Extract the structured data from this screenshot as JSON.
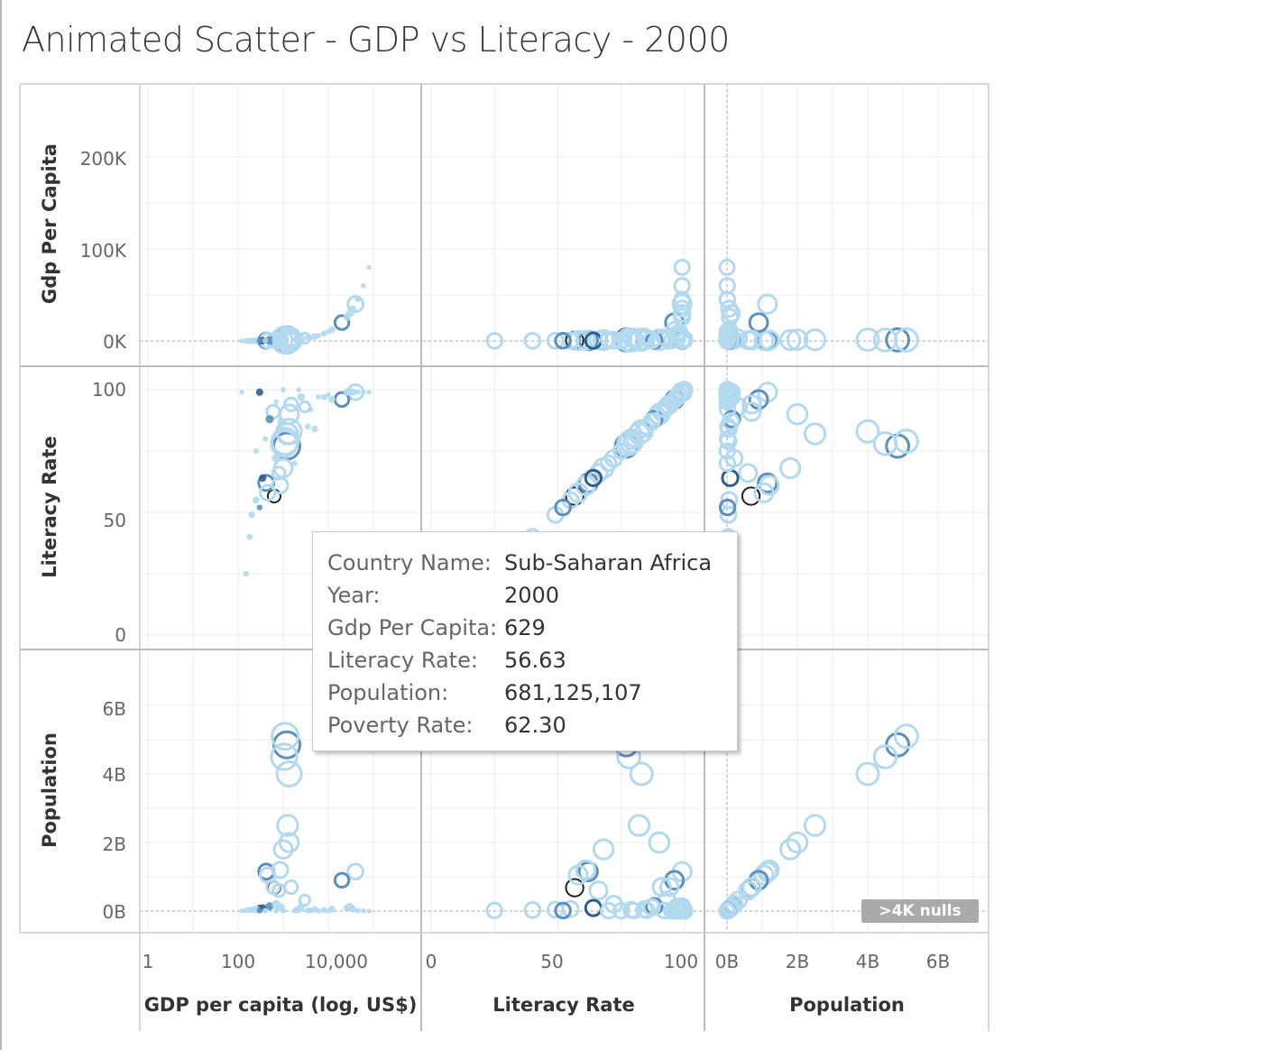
{
  "title": "Animated Scatter - GDP vs Literacy - 2000",
  "colors": {
    "light": "#b3d9ee",
    "medium": "#5b8fbd",
    "dark": "#2c5f8e",
    "selected": "#222222"
  },
  "chart_data": {
    "type": "scatter",
    "layout": "scatter-plot matrix",
    "variables": [
      {
        "key": "gdp",
        "row_label": "Gdp Per Capita",
        "col_label": "GDP per capita (log, US$)",
        "scale": "log",
        "range": [
          1,
          100000
        ],
        "row_range": [
          0,
          240000
        ]
      },
      {
        "key": "lit",
        "row_label": "Literacy Rate",
        "col_label": "Literacy Rate",
        "scale": "linear",
        "range": [
          0,
          100
        ]
      },
      {
        "key": "pop",
        "row_label": "Population",
        "col_label": "Population",
        "scale": "linear",
        "range": [
          0,
          7000000000
        ]
      }
    ],
    "row_ticks": {
      "gdp": [
        "200K",
        "100K",
        "0K"
      ],
      "lit": [
        "100",
        "50",
        "0"
      ],
      "pop": [
        "6B",
        "4B",
        "2B",
        "0B"
      ]
    },
    "col_ticks": {
      "gdp": [
        "1",
        "100",
        "10,000"
      ],
      "lit": [
        "0",
        "50",
        "100"
      ],
      "pop": [
        "0B",
        "2B",
        "4B",
        "6B"
      ]
    },
    "points": [
      {
        "gdp": 629,
        "lit": 56.63,
        "pop": 681125107,
        "shade": "selected"
      },
      {
        "gdp": 1200,
        "lit": 77,
        "pop": 4850000000,
        "shade": "medium"
      },
      {
        "gdp": 1100,
        "lit": 79,
        "pop": 5100000000,
        "shade": "light"
      },
      {
        "gdp": 1350,
        "lit": 83,
        "pop": 4000000000,
        "shade": "light"
      },
      {
        "gdp": 1050,
        "lit": 78,
        "pop": 4500000000,
        "shade": "light"
      },
      {
        "gdp": 1250,
        "lit": 82,
        "pop": 2500000000,
        "shade": "light"
      },
      {
        "gdp": 1350,
        "lit": 90,
        "pop": 2000000000,
        "shade": "light"
      },
      {
        "gdp": 1000,
        "lit": 68,
        "pop": 1800000000,
        "shade": "light"
      },
      {
        "gdp": 420,
        "lit": 62,
        "pop": 1150000000,
        "shade": "medium"
      },
      {
        "gdp": 450,
        "lit": 58,
        "pop": 1050000000,
        "shade": "light"
      },
      {
        "gdp": 850,
        "lit": 61,
        "pop": 1200000000,
        "shade": "light"
      },
      {
        "gdp": 40000,
        "lit": 99,
        "pop": 1150000000,
        "shade": "light"
      },
      {
        "gdp": 20000,
        "lit": 96,
        "pop": 900000000,
        "shade": "medium"
      },
      {
        "gdp": 1500,
        "lit": 94,
        "pop": 700000000,
        "shade": "light"
      },
      {
        "gdp": 600,
        "lit": 91,
        "pop": 700000000,
        "shade": "light"
      },
      {
        "gdp": 800,
        "lit": 66,
        "pop": 600000000,
        "shade": "light"
      },
      {
        "gdp": 3000,
        "lit": 93,
        "pop": 320000000,
        "shade": "light"
      },
      {
        "gdp": 2500,
        "lit": 97,
        "pop": 120000000,
        "shade": "light"
      },
      {
        "gdp": 300,
        "lit": 99,
        "pop": 80000000,
        "shade": "dark"
      },
      {
        "gdp": 500,
        "lit": 88,
        "pop": 140000000,
        "shade": "medium"
      },
      {
        "gdp": 700,
        "lit": 72,
        "pop": 200000000,
        "shade": "light"
      },
      {
        "gdp": 350,
        "lit": 64,
        "pop": 90000000,
        "shade": "dark"
      },
      {
        "gdp": 250,
        "lit": 55,
        "pop": 60000000,
        "shade": "light"
      },
      {
        "gdp": 200,
        "lit": 49,
        "pop": 40000000,
        "shade": "light"
      },
      {
        "gdp": 180,
        "lit": 40,
        "pop": 30000000,
        "shade": "light"
      },
      {
        "gdp": 150,
        "lit": 25,
        "pop": 20000000,
        "shade": "light"
      },
      {
        "gdp": 900,
        "lit": 87,
        "pop": 110000000,
        "shade": "light"
      },
      {
        "gdp": 5000,
        "lit": 84,
        "pop": 50000000,
        "shade": "light"
      },
      {
        "gdp": 8000,
        "lit": 97,
        "pop": 30000000,
        "shade": "light"
      },
      {
        "gdp": 12000,
        "lit": 96,
        "pop": 60000000,
        "shade": "light"
      },
      {
        "gdp": 26000,
        "lit": 99,
        "pop": 80000000,
        "shade": "light"
      },
      {
        "gdp": 30000,
        "lit": 99,
        "pop": 130000000,
        "shade": "light"
      },
      {
        "gdp": 35000,
        "lit": 99,
        "pop": 60000000,
        "shade": "light"
      },
      {
        "gdp": 45000,
        "lit": 99,
        "pop": 10000000,
        "shade": "light"
      },
      {
        "gdp": 60000,
        "lit": 99,
        "pop": 5000000,
        "shade": "light"
      },
      {
        "gdp": 80000,
        "lit": 99,
        "pop": 500000,
        "shade": "light"
      },
      {
        "gdp": 4000,
        "lit": 92,
        "pop": 15000000,
        "shade": "light"
      },
      {
        "gdp": 3500,
        "lit": 85,
        "pop": 25000000,
        "shade": "light"
      },
      {
        "gdp": 2000,
        "lit": 79,
        "pop": 40000000,
        "shade": "light"
      },
      {
        "gdp": 1800,
        "lit": 70,
        "pop": 10000000,
        "shade": "light"
      },
      {
        "gdp": 250,
        "lit": 75,
        "pop": 8000000,
        "shade": "light"
      },
      {
        "gdp": 400,
        "lit": 80,
        "pop": 12000000,
        "shade": "light"
      },
      {
        "gdp": 300,
        "lit": 52,
        "pop": 15000000,
        "shade": "medium"
      },
      {
        "gdp": 120,
        "lit": 99,
        "pop": 3000000,
        "shade": "light"
      },
      {
        "gdp": 6000,
        "lit": 97,
        "pop": 4000000,
        "shade": "light"
      },
      {
        "gdp": 700,
        "lit": 95,
        "pop": 6000000,
        "shade": "light"
      },
      {
        "gdp": 1000,
        "lit": 100,
        "pop": 9000000,
        "shade": "light"
      },
      {
        "gdp": 2200,
        "lit": 100,
        "pop": 3000000,
        "shade": "light"
      },
      {
        "gdp": 10000,
        "lit": 98,
        "pop": 2000000,
        "shade": "light"
      }
    ]
  },
  "tooltip": {
    "rows": [
      {
        "label": "Country Name:",
        "value": "Sub-Saharan Africa"
      },
      {
        "label": "Year:",
        "value": "2000"
      },
      {
        "label": "Gdp Per Capita:",
        "value": "629"
      },
      {
        "label": "Literacy Rate:",
        "value": "56.63"
      },
      {
        "label": "Population:",
        "value": "681,125,107"
      },
      {
        "label": "Poverty Rate:",
        "value": "62.30"
      }
    ]
  },
  "nulls_badge": ">4K nulls"
}
